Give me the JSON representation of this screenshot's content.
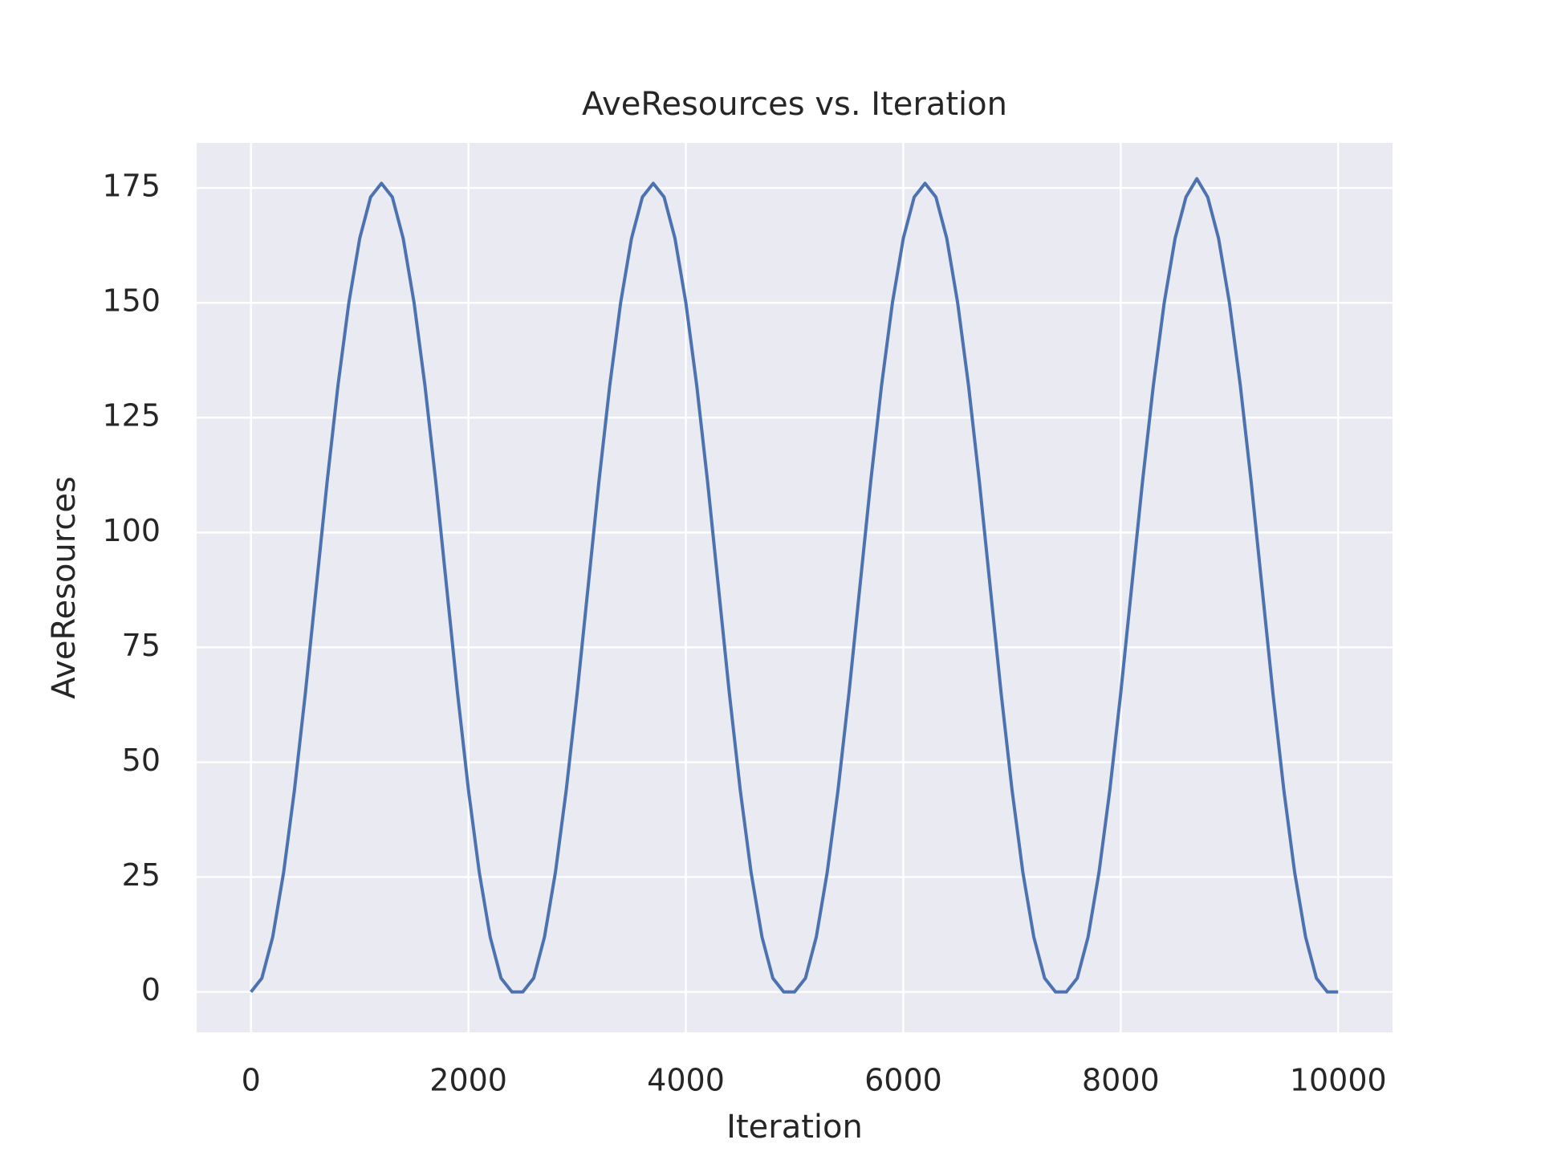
{
  "chart_data": {
    "type": "line",
    "title": "AveResources vs. Iteration",
    "xlabel": "Iteration",
    "ylabel": "AveResources",
    "x": [
      0,
      100,
      200,
      300,
      400,
      500,
      600,
      700,
      800,
      900,
      1000,
      1100,
      1200,
      1300,
      1400,
      1500,
      1600,
      1700,
      1800,
      1900,
      2000,
      2100,
      2200,
      2300,
      2400,
      2500,
      2600,
      2700,
      2800,
      2900,
      3000,
      3100,
      3200,
      3300,
      3400,
      3500,
      3600,
      3700,
      3800,
      3900,
      4000,
      4100,
      4200,
      4300,
      4400,
      4500,
      4600,
      4700,
      4800,
      4900,
      5000,
      5100,
      5200,
      5300,
      5400,
      5500,
      5600,
      5700,
      5800,
      5900,
      6000,
      6100,
      6200,
      6300,
      6400,
      6500,
      6600,
      6700,
      6800,
      6900,
      7000,
      7100,
      7200,
      7300,
      7400,
      7500,
      7600,
      7700,
      7800,
      7900,
      8000,
      8100,
      8200,
      8300,
      8400,
      8500,
      8600,
      8700,
      8800,
      8900,
      9000,
      9100,
      9200,
      9300,
      9400,
      9500,
      9600,
      9700,
      9800,
      9900,
      10000
    ],
    "series": [
      {
        "name": "AveResources",
        "color": "#4c72b0",
        "values": [
          0,
          3,
          12,
          26,
          44,
          65,
          88,
          111,
          132,
          150,
          164,
          173,
          176,
          173,
          164,
          150,
          132,
          111,
          88,
          65,
          44,
          26,
          12,
          3,
          0,
          0,
          3,
          12,
          26,
          44,
          65,
          88,
          111,
          132,
          150,
          164,
          173,
          176,
          173,
          164,
          150,
          132,
          111,
          88,
          65,
          44,
          26,
          12,
          3,
          0,
          0,
          3,
          12,
          26,
          44,
          65,
          88,
          111,
          132,
          150,
          164,
          173,
          176,
          173,
          164,
          150,
          132,
          111,
          88,
          65,
          44,
          26,
          12,
          3,
          0,
          0,
          3,
          12,
          26,
          44,
          65,
          88,
          111,
          132,
          150,
          164,
          173,
          177,
          173,
          164,
          150,
          132,
          111,
          88,
          65,
          44,
          26,
          12,
          3,
          0,
          0
        ]
      }
    ],
    "xlim": [
      -500,
      10500
    ],
    "ylim": [
      -8.8,
      184.8
    ],
    "xticks": [
      0,
      2000,
      4000,
      6000,
      8000,
      10000
    ],
    "yticks": [
      0,
      25,
      50,
      75,
      100,
      125,
      150,
      175
    ],
    "grid": true,
    "background": "#eaeaf2"
  }
}
